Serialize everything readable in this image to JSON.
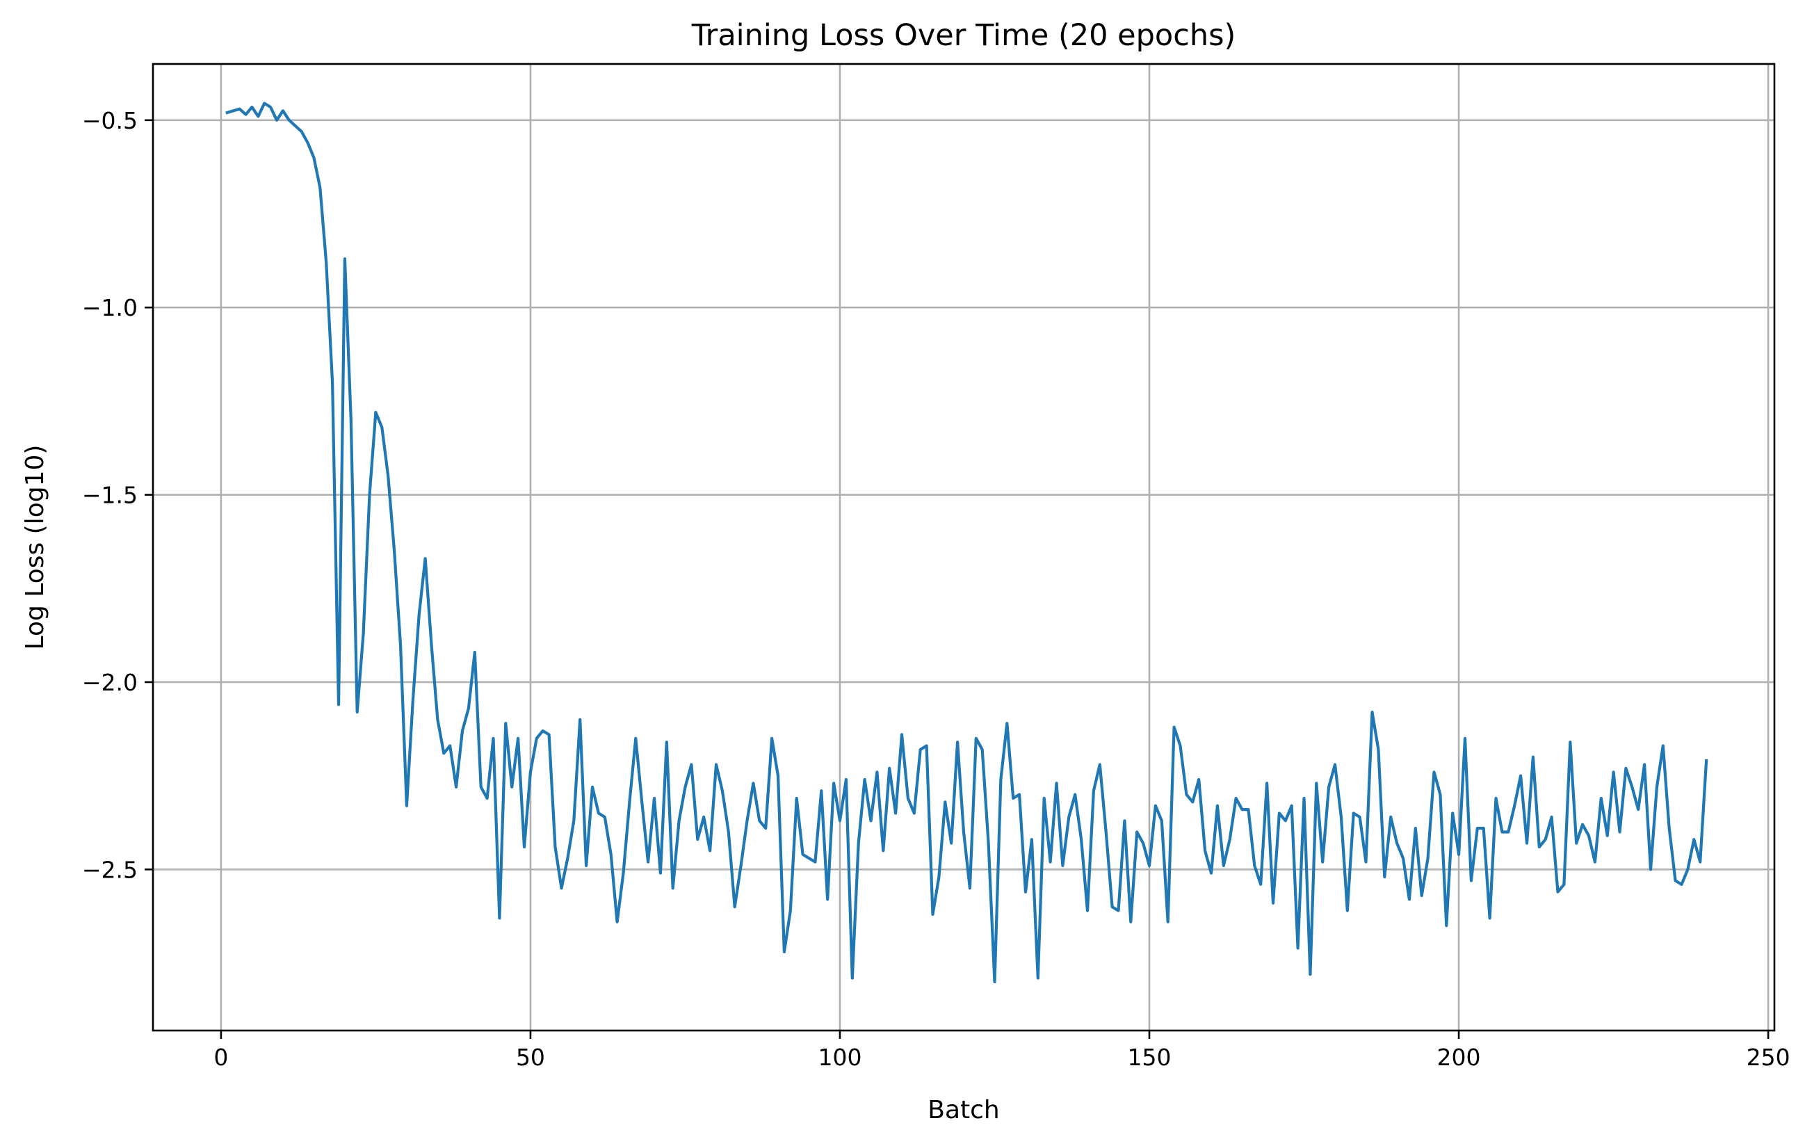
{
  "chart_data": {
    "type": "line",
    "title": "Training Loss Over Time (20 epochs)",
    "xlabel": "Batch",
    "ylabel": "Log Loss (log10)",
    "xlim": [
      -11,
      251
    ],
    "ylim": [
      -2.93,
      -0.35
    ],
    "xticks": [
      0,
      50,
      100,
      150,
      200,
      250
    ],
    "xtick_labels": [
      "0",
      "50",
      "100",
      "150",
      "200",
      "250"
    ],
    "yticks": [
      -2.5,
      -2.0,
      -1.5,
      -1.0,
      -0.5
    ],
    "ytick_labels": [
      "−2.5",
      "−2.0",
      "−1.5",
      "−1.0",
      "−0.5"
    ],
    "grid": true,
    "line_color": "#1f77b4",
    "series": [
      {
        "x": [
          1,
          2,
          3,
          4,
          5,
          6,
          7,
          8,
          9,
          10,
          11,
          12,
          13,
          14,
          15,
          16,
          17,
          18,
          19,
          20,
          21,
          22,
          23,
          24,
          25,
          26,
          27,
          28,
          29,
          30,
          31,
          32,
          33,
          34,
          35,
          36,
          37,
          38,
          39,
          40,
          41,
          42,
          43,
          44,
          45,
          46,
          47,
          48,
          49,
          50,
          51,
          52,
          53,
          54,
          55,
          56,
          57,
          58,
          59,
          60,
          61,
          62,
          63,
          64,
          65,
          66,
          67,
          68,
          69,
          70,
          71,
          72,
          73,
          74,
          75,
          76,
          77,
          78,
          79,
          80,
          81,
          82,
          83,
          84,
          85,
          86,
          87,
          88,
          89,
          90,
          91,
          92,
          93,
          94,
          95,
          96,
          97,
          98,
          99,
          100,
          101,
          102,
          103,
          104,
          105,
          106,
          107,
          108,
          109,
          110,
          111,
          112,
          113,
          114,
          115,
          116,
          117,
          118,
          119,
          120,
          121,
          122,
          123,
          124,
          125,
          126,
          127,
          128,
          129,
          130,
          131,
          132,
          133,
          134,
          135,
          136,
          137,
          138,
          139,
          140,
          141,
          142,
          143,
          144,
          145,
          146,
          147,
          148,
          149,
          150,
          151,
          152,
          153,
          154,
          155,
          156,
          157,
          158,
          159,
          160,
          161,
          162,
          163,
          164,
          165,
          166,
          167,
          168,
          169,
          170,
          171,
          172,
          173,
          174,
          175,
          176,
          177,
          178,
          179,
          180,
          181,
          182,
          183,
          184,
          185,
          186,
          187,
          188,
          189,
          190,
          191,
          192,
          193,
          194,
          195,
          196,
          197,
          198,
          199,
          200,
          201,
          202,
          203,
          204,
          205,
          206,
          207,
          208,
          209,
          210,
          211,
          212,
          213,
          214,
          215,
          216,
          217,
          218,
          219,
          220,
          221,
          222,
          223,
          224,
          225,
          226,
          227,
          228,
          229,
          230,
          231,
          232,
          233,
          234,
          235,
          236,
          237,
          238,
          239,
          240
        ],
        "y": [
          -0.48,
          -0.475,
          -0.47,
          -0.485,
          -0.465,
          -0.49,
          -0.455,
          -0.465,
          -0.5,
          -0.475,
          -0.5,
          -0.515,
          -0.53,
          -0.56,
          -0.6,
          -0.68,
          -0.88,
          -1.2,
          -2.06,
          -0.87,
          -1.3,
          -2.08,
          -1.87,
          -1.5,
          -1.28,
          -1.32,
          -1.45,
          -1.65,
          -1.9,
          -2.33,
          -2.05,
          -1.82,
          -1.67,
          -1.9,
          -2.1,
          -2.19,
          -2.17,
          -2.28,
          -2.13,
          -2.07,
          -1.92,
          -2.28,
          -2.31,
          -2.15,
          -2.63,
          -2.11,
          -2.28,
          -2.15,
          -2.44,
          -2.24,
          -2.15,
          -2.13,
          -2.14,
          -2.44,
          -2.55,
          -2.47,
          -2.37,
          -2.1,
          -2.49,
          -2.28,
          -2.35,
          -2.36,
          -2.46,
          -2.64,
          -2.51,
          -2.32,
          -2.15,
          -2.32,
          -2.48,
          -2.31,
          -2.51,
          -2.16,
          -2.55,
          -2.37,
          -2.28,
          -2.22,
          -2.42,
          -2.36,
          -2.45,
          -2.22,
          -2.29,
          -2.4,
          -2.6,
          -2.49,
          -2.37,
          -2.27,
          -2.37,
          -2.39,
          -2.15,
          -2.25,
          -2.72,
          -2.61,
          -2.31,
          -2.46,
          -2.47,
          -2.48,
          -2.29,
          -2.58,
          -2.27,
          -2.37,
          -2.26,
          -2.79,
          -2.43,
          -2.26,
          -2.37,
          -2.24,
          -2.45,
          -2.23,
          -2.35,
          -2.14,
          -2.31,
          -2.35,
          -2.18,
          -2.17,
          -2.62,
          -2.52,
          -2.32,
          -2.43,
          -2.16,
          -2.4,
          -2.55,
          -2.15,
          -2.18,
          -2.43,
          -2.8,
          -2.26,
          -2.11,
          -2.31,
          -2.3,
          -2.56,
          -2.42,
          -2.79,
          -2.31,
          -2.48,
          -2.27,
          -2.49,
          -2.36,
          -2.3,
          -2.42,
          -2.61,
          -2.29,
          -2.22,
          -2.4,
          -2.6,
          -2.61,
          -2.37,
          -2.64,
          -2.4,
          -2.43,
          -2.49,
          -2.33,
          -2.37,
          -2.64,
          -2.12,
          -2.17,
          -2.3,
          -2.32,
          -2.26,
          -2.45,
          -2.51,
          -2.33,
          -2.49,
          -2.42,
          -2.31,
          -2.34,
          -2.34,
          -2.49,
          -2.54,
          -2.27,
          -2.59,
          -2.35,
          -2.37,
          -2.33,
          -2.71,
          -2.31,
          -2.78,
          -2.27,
          -2.48,
          -2.28,
          -2.22,
          -2.36,
          -2.61,
          -2.35,
          -2.36,
          -2.48,
          -2.08,
          -2.18,
          -2.52,
          -2.36,
          -2.43,
          -2.47,
          -2.58,
          -2.39,
          -2.57,
          -2.47,
          -2.24,
          -2.3,
          -2.65,
          -2.35,
          -2.46,
          -2.15,
          -2.53,
          -2.39,
          -2.39,
          -2.63,
          -2.31,
          -2.4,
          -2.4,
          -2.33,
          -2.25,
          -2.43,
          -2.2,
          -2.44,
          -2.42,
          -2.36,
          -2.56,
          -2.54,
          -2.16,
          -2.43,
          -2.38,
          -2.41,
          -2.48,
          -2.31,
          -2.41,
          -2.24,
          -2.4,
          -2.23,
          -2.28,
          -2.34,
          -2.22,
          -2.5,
          -2.28,
          -2.17,
          -2.39,
          -2.53,
          -2.54,
          -2.5,
          -2.42,
          -2.48,
          -2.21
        ]
      }
    ]
  }
}
